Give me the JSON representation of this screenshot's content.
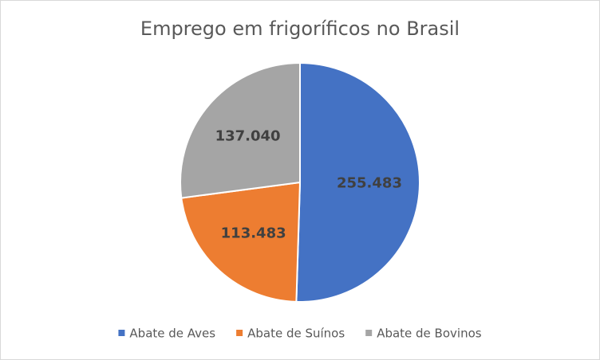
{
  "chart_data": {
    "type": "pie",
    "title": "Emprego em frigoríficos no Brasil",
    "categories": [
      "Abate de Aves",
      "Abate de Suínos",
      "Abate de Bovinos"
    ],
    "values": [
      255483,
      113483,
      137040
    ],
    "value_labels": [
      "255.483",
      "113.483",
      "137.040"
    ],
    "colors": [
      "#4472c4",
      "#ed7d31",
      "#a5a5a5"
    ],
    "legend": "bottom"
  }
}
